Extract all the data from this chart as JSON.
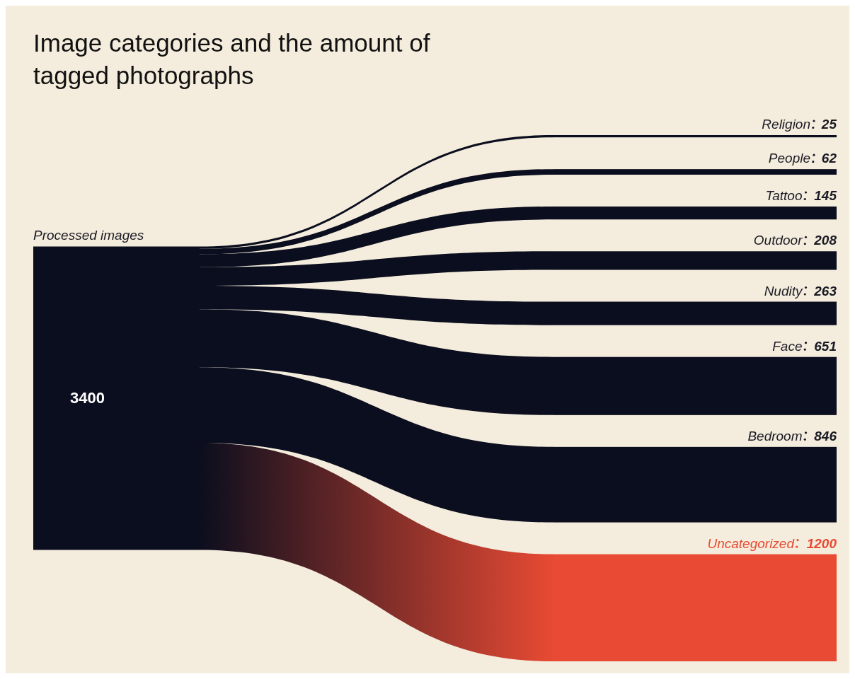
{
  "chart_data": {
    "type": "other",
    "title": "Image categories and the amount of tagged photographs",
    "categories": [
      "Processed images",
      "Religion",
      "People",
      "Tattoo",
      "Outdoor",
      "Nudity",
      "Face",
      "Bedroom",
      "Uncategorized"
    ],
    "values": [
      3400,
      25,
      62,
      145,
      208,
      263,
      651,
      846,
      1200
    ],
    "colors": [
      "#0b0e1e",
      "#0b0e1e",
      "#0b0e1e",
      "#0b0e1e",
      "#0b0e1e",
      "#0b0e1e",
      "#0b0e1e",
      "#0b0e1e",
      "#e84a33"
    ],
    "data_labels": true
  }
}
